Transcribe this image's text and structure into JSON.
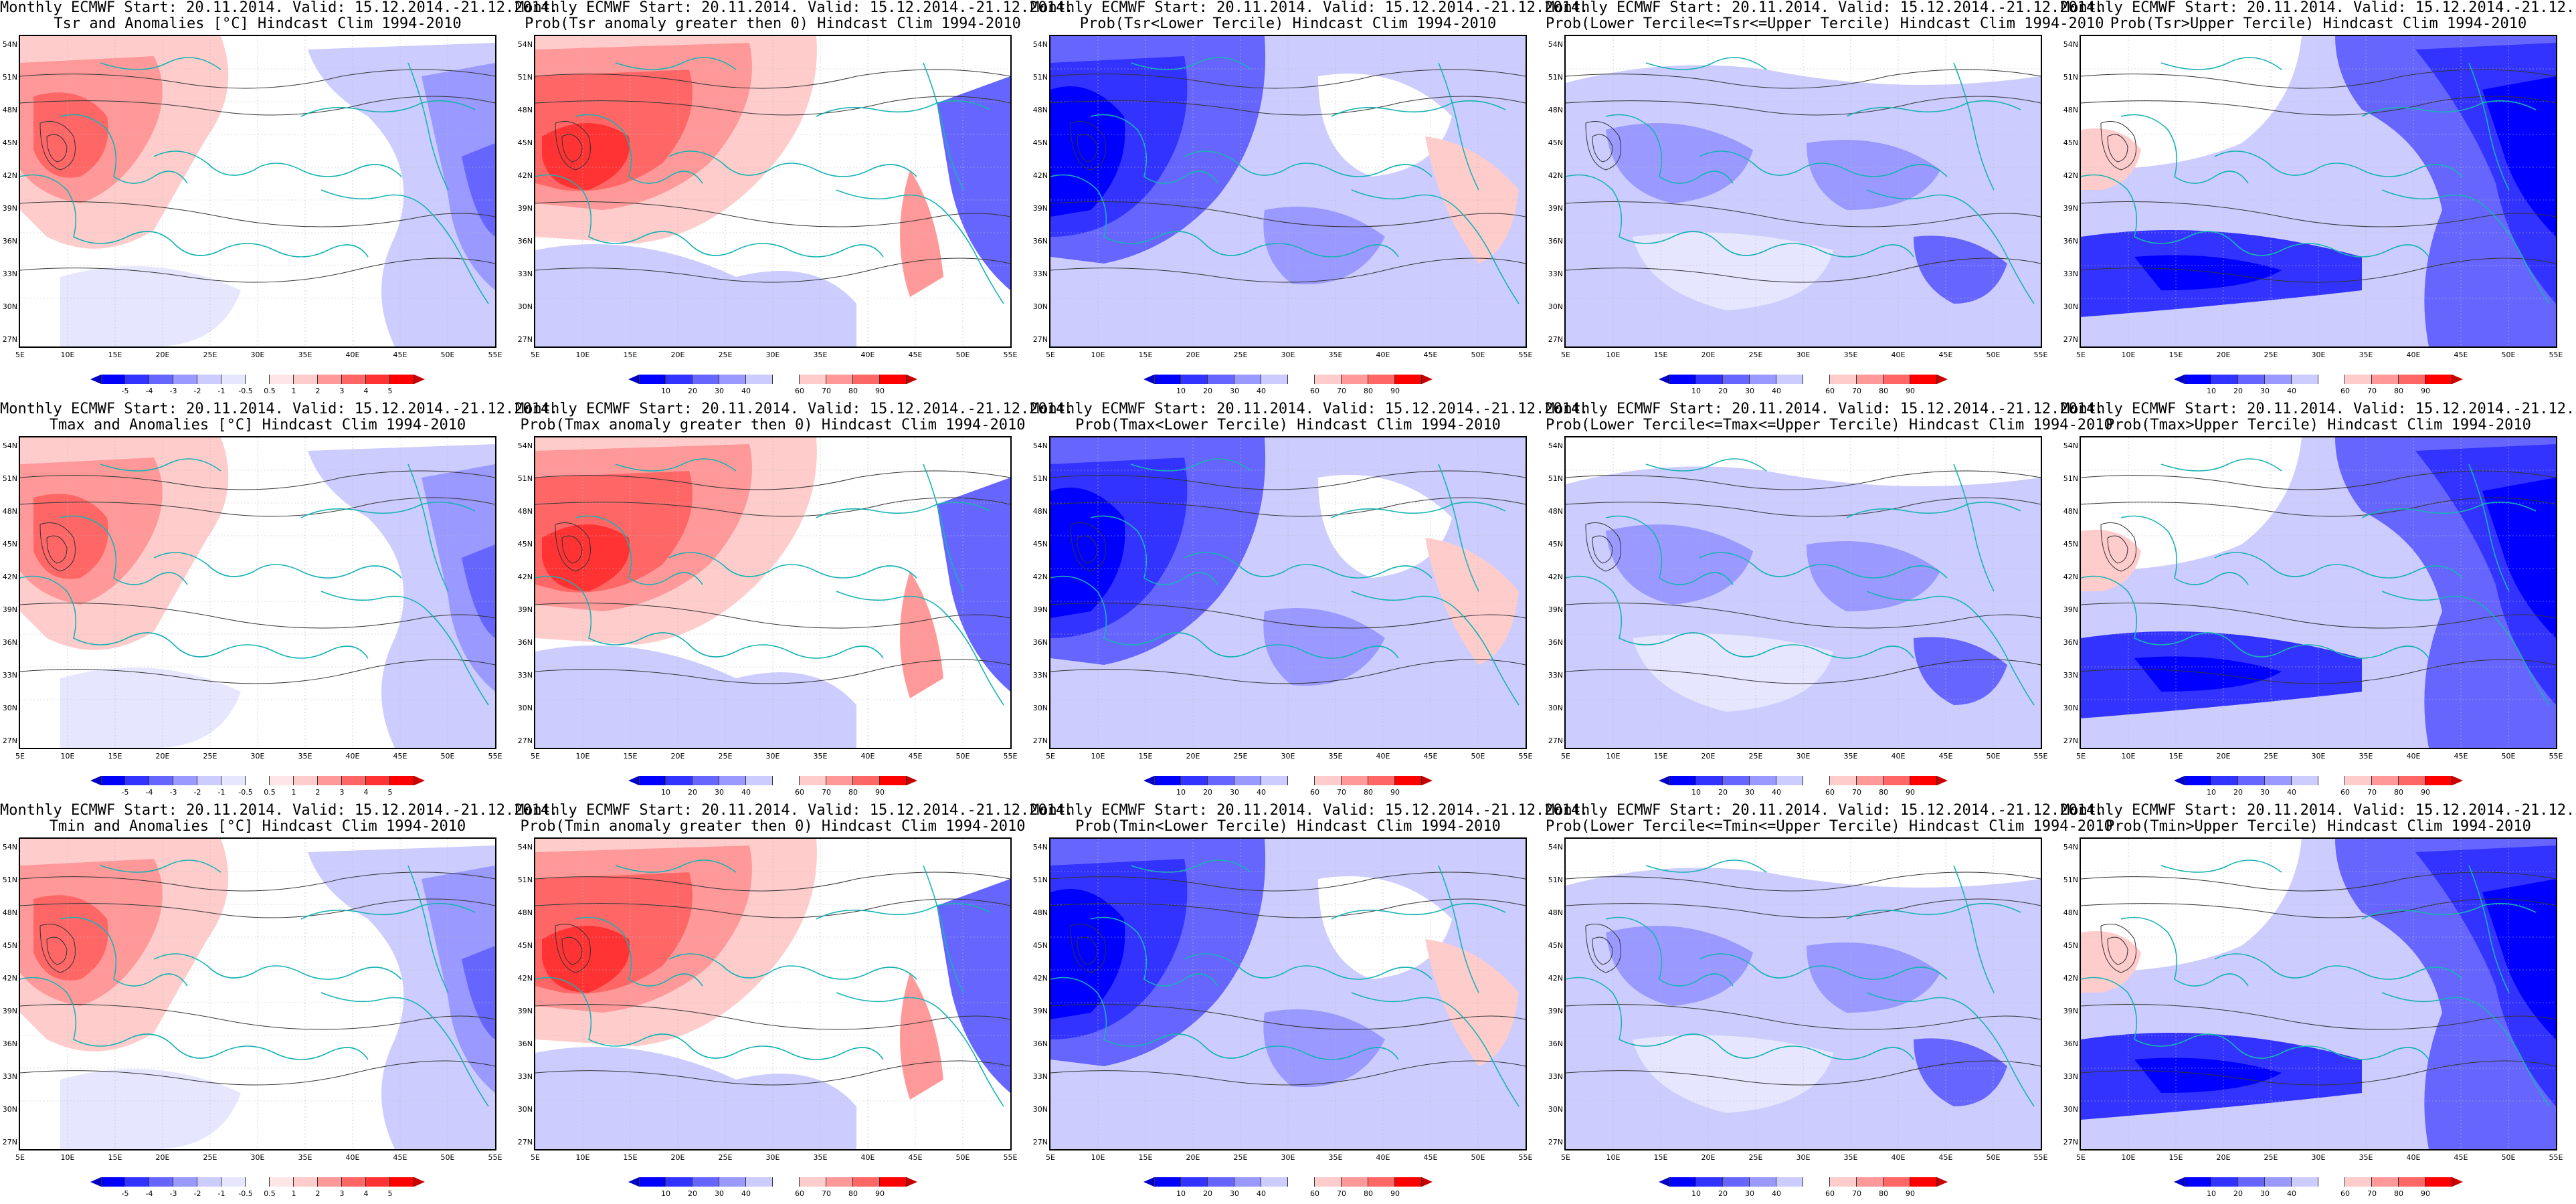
{
  "title_line1": "Monthly ECMWF Start: 20.11.2014. Valid: 15.12.2014.-21.12.2014.",
  "palettes": {
    "anom": {
      "colors": [
        "#0000ff",
        "#3333ff",
        "#6666ff",
        "#9999ff",
        "#ccccff",
        "#e6e6ff",
        "#ffffff",
        "#ffe6e6",
        "#ffcccc",
        "#ff9999",
        "#ff6666",
        "#ff3333",
        "#ff0000"
      ],
      "left_arrow": "#0000c8",
      "right_arrow": "#c80000",
      "labels": [
        "-5",
        "-4",
        "-3",
        "-2",
        "-1",
        "-0.5",
        "0.5",
        "1",
        "2",
        "3",
        "4",
        "5"
      ]
    },
    "prob": {
      "colors": [
        "#0000ff",
        "#3333ff",
        "#6666ff",
        "#9999ff",
        "#ccccff",
        "#ffffff",
        "#ffcccc",
        "#ff9999",
        "#ff6666",
        "#ff0000"
      ],
      "left_arrow": "#0000c8",
      "right_arrow": "#c80000",
      "labels": [
        "10",
        "20",
        "30",
        "40",
        "60",
        "70",
        "80",
        "90"
      ]
    }
  },
  "axes": {
    "lat_labels": [
      "54N",
      "51N",
      "48N",
      "45N",
      "42N",
      "39N",
      "36N",
      "33N",
      "30N",
      "27N"
    ],
    "lon_labels": [
      "5E",
      "10E",
      "15E",
      "20E",
      "25E",
      "30E",
      "35E",
      "40E",
      "45E",
      "50E",
      "55E"
    ]
  },
  "rows": [
    {
      "variable": "Tsr",
      "panels": [
        {
          "title2": "Tsr and Anomalies [°C] Hindcast Clim 1994-2010",
          "kind": "anom",
          "field": "warm_west"
        },
        {
          "title2": "Prob(Tsr anomaly greater then 0) Hindcast Clim 1994-2010",
          "kind": "prob",
          "field": "warm_west_strong"
        },
        {
          "title2": "Prob(Tsr<Lower Tercile) Hindcast Clim 1994-2010",
          "kind": "prob",
          "field": "cold_west"
        },
        {
          "title2": "Prob(Lower Tercile<=Tsr<=Upper Tercile) Hindcast Clim 1994-2010",
          "kind": "prob",
          "field": "mid"
        },
        {
          "title2": "Prob(Tsr>Upper Tercile) Hindcast Clim 1994-2010",
          "kind": "prob",
          "field": "cold_east"
        }
      ]
    },
    {
      "variable": "Tmax",
      "panels": [
        {
          "title2": "Tmax and Anomalies [°C] Hindcast Clim 1994-2010",
          "kind": "anom",
          "field": "warm_west"
        },
        {
          "title2": "Prob(Tmax anomaly greater then 0) Hindcast Clim 1994-2010",
          "kind": "prob",
          "field": "warm_west_strong"
        },
        {
          "title2": "Prob(Tmax<Lower Tercile) Hindcast Clim 1994-2010",
          "kind": "prob",
          "field": "cold_west"
        },
        {
          "title2": "Prob(Lower Tercile<=Tmax<=Upper Tercile) Hindcast Clim 1994-2010",
          "kind": "prob",
          "field": "mid"
        },
        {
          "title2": "Prob(Tmax>Upper Tercile) Hindcast Clim 1994-2010",
          "kind": "prob",
          "field": "cold_east"
        }
      ]
    },
    {
      "variable": "Tmin",
      "panels": [
        {
          "title2": "Tmin and Anomalies [°C] Hindcast Clim 1994-2010",
          "kind": "anom",
          "field": "warm_west"
        },
        {
          "title2": "Prob(Tmin anomaly greater then 0) Hindcast Clim 1994-2010",
          "kind": "prob",
          "field": "warm_west_strong"
        },
        {
          "title2": "Prob(Tmin<Lower Tercile) Hindcast Clim 1994-2010",
          "kind": "prob",
          "field": "cold_west"
        },
        {
          "title2": "Prob(Lower Tercile<=Tmin<=Upper Tercile) Hindcast Clim 1994-2010",
          "kind": "prob",
          "field": "mid"
        },
        {
          "title2": "Prob(Tmin>Upper Tercile) Hindcast Clim 1994-2010",
          "kind": "prob",
          "field": "cold_east"
        }
      ]
    }
  ]
}
